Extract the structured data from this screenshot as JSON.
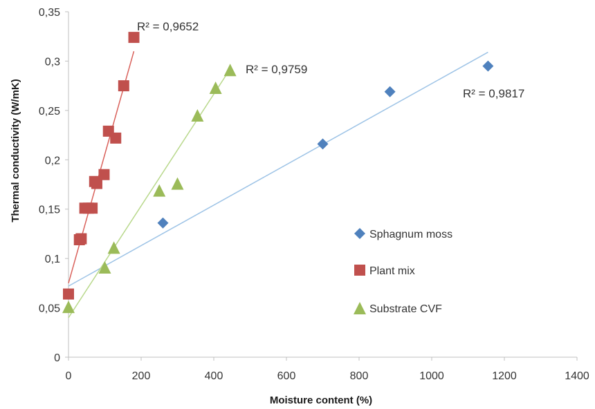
{
  "chart_data": {
    "type": "scatter",
    "title": "",
    "xlabel": "Moisture content (%)",
    "ylabel": "Thermal conductivity (W/mK)",
    "xlim": [
      0,
      1400
    ],
    "ylim": [
      0,
      0.35
    ],
    "xticks": [
      0,
      200,
      400,
      600,
      800,
      1000,
      1200,
      1400
    ],
    "yticks": [
      0,
      0.05,
      0.1,
      0.15,
      0.2,
      0.25,
      0.3,
      0.35
    ],
    "xtick_labels": [
      "0",
      "200",
      "400",
      "600",
      "800",
      "1000",
      "1200",
      "1400"
    ],
    "ytick_labels": [
      "0",
      "0,05",
      "0,1",
      "0,15",
      "0,2",
      "0,25",
      "0,3",
      "0,35"
    ],
    "grid": false,
    "legend_position": "right",
    "series": [
      {
        "name": "Sphagnum moss",
        "marker": "diamond",
        "color": "#4f81bd",
        "trend_color": "#9dc3e6",
        "r2_label": "R² = 0,9817",
        "trend": [
          [
            0,
            0.072
          ],
          [
            1155,
            0.309
          ]
        ],
        "points": [
          [
            0,
            0.064
          ],
          [
            260,
            0.136
          ],
          [
            700,
            0.216
          ],
          [
            885,
            0.269
          ],
          [
            1155,
            0.295
          ]
        ]
      },
      {
        "name": "Plant mix",
        "marker": "square",
        "color": "#c0504d",
        "trend_color": "#d9605a",
        "r2_label": "R² = 0,9652",
        "trend": [
          [
            0,
            0.075
          ],
          [
            180,
            0.31
          ]
        ],
        "points": [
          [
            0,
            0.064
          ],
          [
            30,
            0.119
          ],
          [
            35,
            0.12
          ],
          [
            45,
            0.151
          ],
          [
            55,
            0.151
          ],
          [
            65,
            0.151
          ],
          [
            72,
            0.178
          ],
          [
            78,
            0.176
          ],
          [
            98,
            0.185
          ],
          [
            110,
            0.229
          ],
          [
            130,
            0.222
          ],
          [
            152,
            0.275
          ],
          [
            180,
            0.324
          ]
        ]
      },
      {
        "name": "Substrate CVF",
        "marker": "triangle",
        "color": "#9bbb59",
        "trend_color": "#b8d88b",
        "r2_label": "R² = 0,9759",
        "trend": [
          [
            0,
            0.04
          ],
          [
            445,
            0.292
          ]
        ],
        "points": [
          [
            0,
            0.051
          ],
          [
            100,
            0.091
          ],
          [
            125,
            0.111
          ],
          [
            250,
            0.169
          ],
          [
            300,
            0.176
          ],
          [
            355,
            0.245
          ],
          [
            405,
            0.273
          ],
          [
            445,
            0.291
          ]
        ]
      }
    ]
  }
}
